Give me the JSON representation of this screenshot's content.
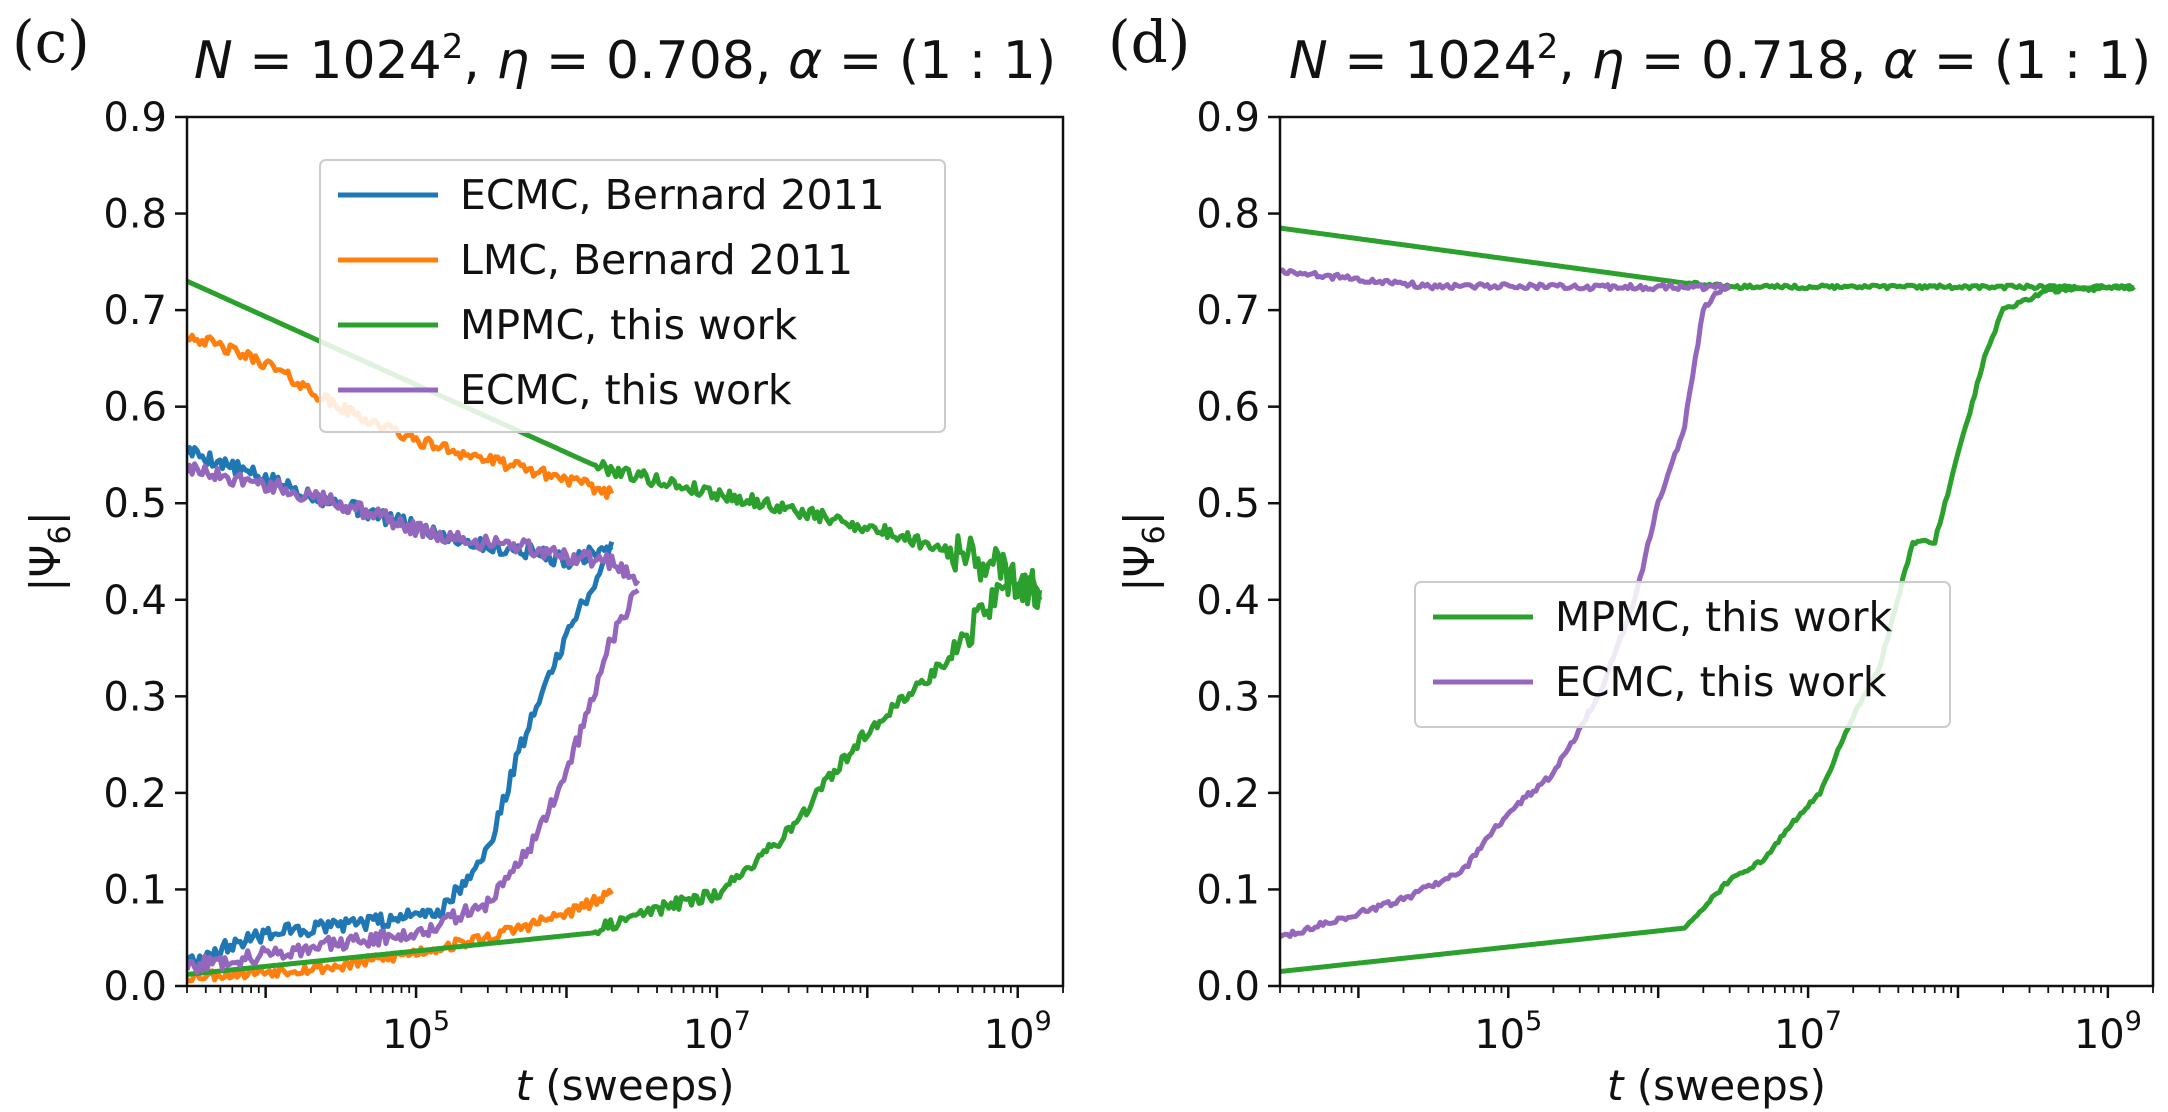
{
  "chart_data": [
    {
      "type": "line",
      "panel_label": "(c)",
      "title": {
        "n_label": "N",
        "n_value": "1024",
        "n_exp": "2",
        "eta_label": "η",
        "eta_value": "0.708",
        "alpha_label": "α",
        "alpha_value": "(1 : 1)"
      },
      "xlabel": {
        "var": "t",
        "rest": " (sweeps)"
      },
      "ylabel": {
        "main": "|Ψ",
        "sub": "6",
        "close": "|"
      },
      "x_scale": "log",
      "xlim": [
        3000,
        2000000000
      ],
      "ylim": [
        0.0,
        0.9
      ],
      "x_ticks": [
        {
          "base": "10",
          "exp": "5",
          "value": 100000
        },
        {
          "base": "10",
          "exp": "7",
          "value": 10000000
        },
        {
          "base": "10",
          "exp": "9",
          "value": 1000000000
        }
      ],
      "y_ticks": [
        "0.0",
        "0.1",
        "0.2",
        "0.3",
        "0.4",
        "0.5",
        "0.6",
        "0.7",
        "0.8",
        "0.9"
      ],
      "grid": false,
      "legend_position": "upper-center",
      "series": [
        {
          "name": "ECMC, Bernard 2011",
          "color": "#1f77b4",
          "noise": 0.008,
          "x": [
            3000,
            10000,
            30000,
            100000,
            300000,
            600000,
            1000000,
            2000000
          ],
          "y": [
            0.555,
            0.525,
            0.5,
            0.475,
            0.455,
            0.45,
            0.44,
            0.455
          ],
          "x2": [
            3000,
            10000,
            50000,
            150000,
            300000,
            500000,
            800000,
            1200000,
            1600000,
            2000000
          ],
          "y2": [
            0.025,
            0.055,
            0.065,
            0.08,
            0.14,
            0.25,
            0.33,
            0.39,
            0.42,
            0.46
          ]
        },
        {
          "name": "LMC, Bernard 2011",
          "color": "#ff7f0e",
          "noise": 0.006,
          "x": [
            3000,
            10000,
            30000,
            100000,
            300000,
            1000000,
            2000000
          ],
          "y": [
            0.675,
            0.645,
            0.6,
            0.565,
            0.545,
            0.525,
            0.51
          ],
          "x2": [
            3000,
            30000,
            100000,
            300000,
            1000000,
            2000000
          ],
          "y2": [
            0.01,
            0.02,
            0.035,
            0.05,
            0.075,
            0.095
          ]
        },
        {
          "name": "MPMC, this work",
          "color": "#2ca02c",
          "noise": 0.007,
          "x": [
            3000,
            1500000,
            5000000,
            20000000,
            100000000,
            400000000,
            800000000,
            1400000000
          ],
          "y": [
            0.73,
            0.54,
            0.52,
            0.5,
            0.475,
            0.45,
            0.43,
            0.4
          ],
          "x2": [
            3000,
            1500000,
            3000000,
            10000000,
            30000000,
            100000000,
            300000000,
            600000000,
            1000000000,
            1400000000
          ],
          "y2": [
            0.012,
            0.055,
            0.075,
            0.095,
            0.16,
            0.265,
            0.33,
            0.39,
            0.42,
            0.41
          ]
        },
        {
          "name": "ECMC, this work",
          "color": "#9467bd",
          "noise": 0.008,
          "x": [
            3000,
            10000,
            50000,
            150000,
            500000,
            1000000,
            2000000,
            3000000
          ],
          "y": [
            0.535,
            0.52,
            0.49,
            0.465,
            0.455,
            0.445,
            0.44,
            0.42
          ],
          "x2": [
            3000,
            20000,
            100000,
            300000,
            600000,
            1000000,
            1500000,
            2000000,
            3000000
          ],
          "y2": [
            0.02,
            0.04,
            0.055,
            0.085,
            0.15,
            0.22,
            0.3,
            0.36,
            0.41
          ]
        }
      ]
    },
    {
      "type": "line",
      "panel_label": "(d)",
      "title": {
        "n_label": "N",
        "n_value": "1024",
        "n_exp": "2",
        "eta_label": "η",
        "eta_value": "0.718",
        "alpha_label": "α",
        "alpha_value": "(1 : 1)"
      },
      "xlabel": {
        "var": "t",
        "rest": " (sweeps)"
      },
      "ylabel": {
        "main": "|Ψ",
        "sub": "6",
        "close": "|"
      },
      "x_scale": "log",
      "xlim": [
        3000,
        2000000000
      ],
      "ylim": [
        0.0,
        0.9
      ],
      "x_ticks": [
        {
          "base": "10",
          "exp": "5",
          "value": 100000
        },
        {
          "base": "10",
          "exp": "7",
          "value": 10000000
        },
        {
          "base": "10",
          "exp": "9",
          "value": 1000000000
        }
      ],
      "y_ticks": [
        "0.0",
        "0.1",
        "0.2",
        "0.3",
        "0.4",
        "0.5",
        "0.6",
        "0.7",
        "0.8",
        "0.9"
      ],
      "grid": false,
      "legend_position": "center-right",
      "series": [
        {
          "name": "MPMC, this work",
          "color": "#2ca02c",
          "noise": 0.002,
          "x": [
            3000,
            1500000,
            3000000,
            30000000,
            300000000,
            1500000000
          ],
          "y": [
            0.785,
            0.728,
            0.724,
            0.724,
            0.724,
            0.724
          ],
          "x2": [
            3000,
            1500000,
            3000000,
            5000000,
            8000000,
            12000000,
            20000000,
            30000000,
            50000000,
            70000000,
            100000000,
            150000000,
            200000000,
            400000000,
            1500000000
          ],
          "y2": [
            0.015,
            0.06,
            0.11,
            0.13,
            0.17,
            0.2,
            0.28,
            0.33,
            0.46,
            0.46,
            0.55,
            0.65,
            0.7,
            0.72,
            0.724
          ]
        },
        {
          "name": "ECMC, this work",
          "color": "#9467bd",
          "noise": 0.003,
          "x": [
            3000,
            30000,
            300000,
            1000000,
            2000000,
            3000000
          ],
          "y": [
            0.74,
            0.725,
            0.724,
            0.724,
            0.724,
            0.724
          ],
          "x2": [
            3000,
            20000,
            50000,
            100000,
            200000,
            400000,
            700000,
            1000000,
            1500000,
            2000000,
            2500000,
            3000000
          ],
          "y2": [
            0.05,
            0.09,
            0.12,
            0.18,
            0.22,
            0.3,
            0.4,
            0.5,
            0.58,
            0.7,
            0.72,
            0.724
          ]
        }
      ]
    }
  ]
}
